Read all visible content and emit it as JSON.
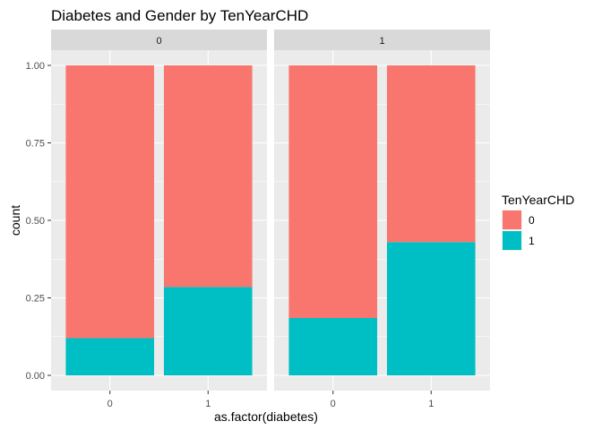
{
  "chart_data": {
    "type": "bar",
    "stacked": true,
    "position": "fill",
    "title": "Diabetes and Gender by TenYearCHD",
    "xlabel": "as.factor(diabetes)",
    "ylabel": "count",
    "ylim": [
      0,
      1
    ],
    "yticks": [
      0,
      0.25,
      0.5,
      0.75,
      1
    ],
    "ytick_labels": [
      "0.00",
      "0.25",
      "0.50",
      "0.75",
      "1.00"
    ],
    "categories": [
      "0",
      "1"
    ],
    "legend": {
      "title": "TenYearCHD",
      "placement": "right",
      "items": [
        {
          "label": "0",
          "color": "#F8766D"
        },
        {
          "label": "1",
          "color": "#00BFC4"
        }
      ]
    },
    "panels": [
      {
        "label": "0",
        "series": [
          {
            "name": "0",
            "color": "#F8766D",
            "values": [
              0.88,
              0.715
            ]
          },
          {
            "name": "1",
            "color": "#00BFC4",
            "values": [
              0.12,
              0.285
            ]
          }
        ]
      },
      {
        "label": "1",
        "series": [
          {
            "name": "0",
            "color": "#F8766D",
            "values": [
              0.815,
              0.57
            ]
          },
          {
            "name": "1",
            "color": "#00BFC4",
            "values": [
              0.185,
              0.43
            ]
          }
        ]
      }
    ],
    "grid": true
  }
}
